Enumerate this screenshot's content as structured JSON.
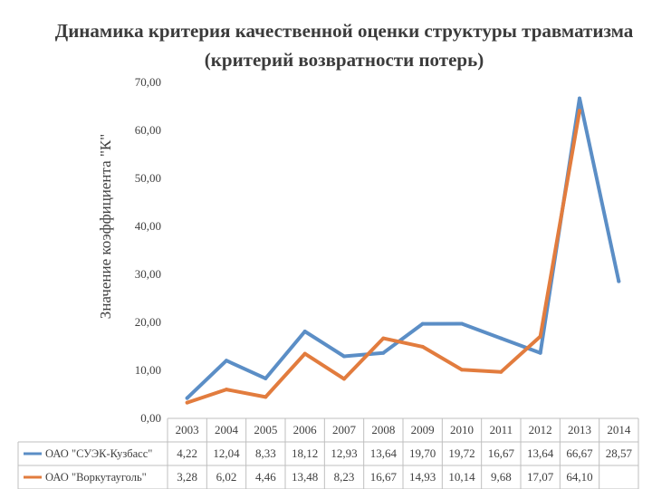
{
  "chart_data": {
    "type": "line",
    "title": "Динамика критерия качественной оценки структуры травматизма (критерий возвратности потерь)",
    "ylabel": "Значение коэффициента \"К\"",
    "xlabel": "",
    "ylim": [
      0,
      70
    ],
    "yticks": [
      "0,00",
      "10,00",
      "20,00",
      "30,00",
      "40,00",
      "50,00",
      "60,00",
      "70,00"
    ],
    "grid": false,
    "legend": "data-table-bottom",
    "categories": [
      "2003",
      "2004",
      "2005",
      "2006",
      "2007",
      "2008",
      "2009",
      "2010",
      "2011",
      "2012",
      "2013",
      "2014"
    ],
    "series": [
      {
        "name": "ОАО \"СУЭК-Кузбасс\"",
        "color": "#5b8ec6",
        "values": [
          4.22,
          12.04,
          8.33,
          18.12,
          12.93,
          13.64,
          19.7,
          19.72,
          16.67,
          13.64,
          66.67,
          28.57
        ],
        "labels": [
          "4,22",
          "12,04",
          "8,33",
          "18,12",
          "12,93",
          "13,64",
          "19,70",
          "19,72",
          "16,67",
          "13,64",
          "66,67",
          "28,57"
        ]
      },
      {
        "name": "ОАО \"Воркутауголь\"",
        "color": "#e27c3e",
        "values": [
          3.28,
          6.02,
          4.46,
          13.48,
          8.23,
          16.67,
          14.93,
          10.14,
          9.68,
          17.07,
          64.1,
          null
        ],
        "labels": [
          "3,28",
          "6,02",
          "4,46",
          "13,48",
          "8,23",
          "16,67",
          "14,93",
          "10,14",
          "9,68",
          "17,07",
          "64,10",
          ""
        ]
      }
    ]
  }
}
